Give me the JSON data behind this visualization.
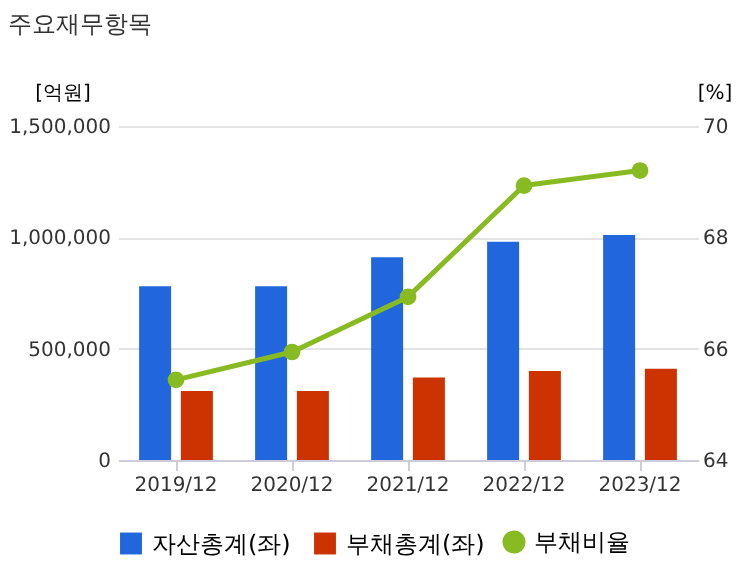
{
  "chart_data": {
    "type": "bar",
    "title": "주요재무항목",
    "ylabel": "[억원]",
    "y2label": "[%]",
    "categories": [
      "2019/12",
      "2020/12",
      "2021/12",
      "2022/12",
      "2023/12"
    ],
    "series": [
      {
        "name": "자산총계(좌)",
        "color": "#2266dd",
        "values": [
          780000,
          780000,
          910000,
          980000,
          1010000
        ]
      },
      {
        "name": "부채총계(좌)",
        "color": "#cc3300",
        "values": [
          310000,
          310000,
          370000,
          400000,
          410000
        ]
      },
      {
        "name": "부채비율",
        "type": "line",
        "axis": "y2",
        "color": "#88bb22",
        "values": [
          65.44,
          65.94,
          66.93,
          68.93,
          69.2
        ]
      }
    ],
    "ylim": [
      0,
      1500000
    ],
    "yticks": [
      {
        "value": 0,
        "label": "0"
      },
      {
        "value": 500000,
        "label": "500,000"
      },
      {
        "value": 1000000,
        "label": "1,000,000"
      },
      {
        "value": 1500000,
        "label": "1,500,000"
      }
    ],
    "y2lim": [
      64,
      70
    ],
    "y2ticks": [
      64,
      66,
      68,
      70
    ],
    "grid": "y",
    "legend": "bottom",
    "marker": "circle"
  }
}
